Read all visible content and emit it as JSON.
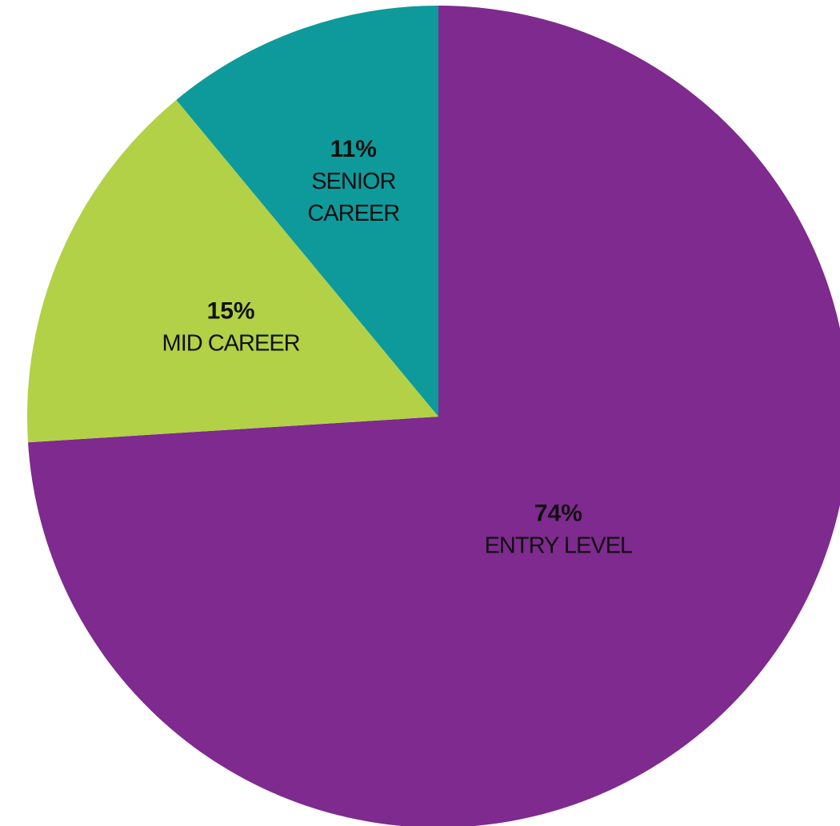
{
  "chart_data": {
    "type": "pie",
    "title": "",
    "slices": [
      {
        "label_lines": [
          "ENTRY LEVEL"
        ],
        "percent_label": "74%",
        "value": 74,
        "color": "#7e2a8e"
      },
      {
        "label_lines": [
          "MID CAREER"
        ],
        "percent_label": "15%",
        "value": 15,
        "color": "#b2d147"
      },
      {
        "label_lines": [
          "SENIOR",
          "CAREER"
        ],
        "percent_label": "11%",
        "value": 11,
        "color": "#0e9a9b"
      }
    ],
    "start_angle_deg": 0,
    "direction": "clockwise",
    "legend": "none",
    "data_labels": "inside"
  }
}
